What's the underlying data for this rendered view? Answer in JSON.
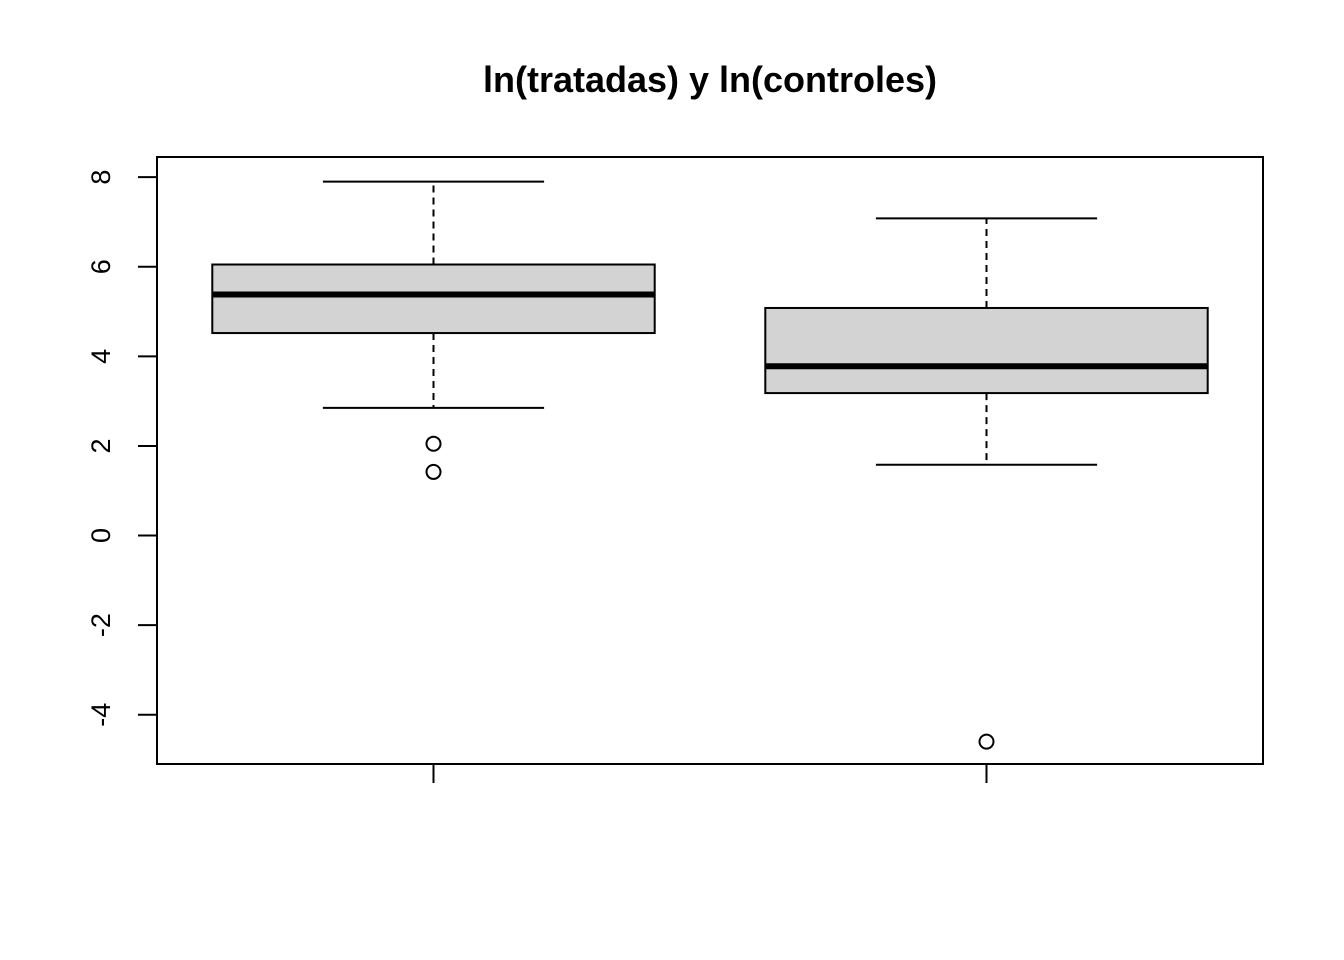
{
  "chart_data": {
    "type": "boxplot",
    "title": "ln(tratadas) y ln(controles)",
    "xlabel": "",
    "ylabel": "",
    "ylim": [
      -5.1,
      8.45
    ],
    "y_ticks": [
      -4,
      -2,
      0,
      2,
      4,
      6,
      8
    ],
    "grid": false,
    "box_fill": "#d3d3d3",
    "boxes": [
      {
        "whisker_low": 2.85,
        "q1": 4.52,
        "median": 5.38,
        "q3": 6.05,
        "whisker_high": 7.9,
        "outliers": [
          2.05,
          1.42
        ]
      },
      {
        "whisker_low": 1.58,
        "q1": 3.18,
        "median": 3.78,
        "q3": 5.08,
        "whisker_high": 7.08,
        "outliers": [
          -4.6
        ]
      }
    ]
  }
}
